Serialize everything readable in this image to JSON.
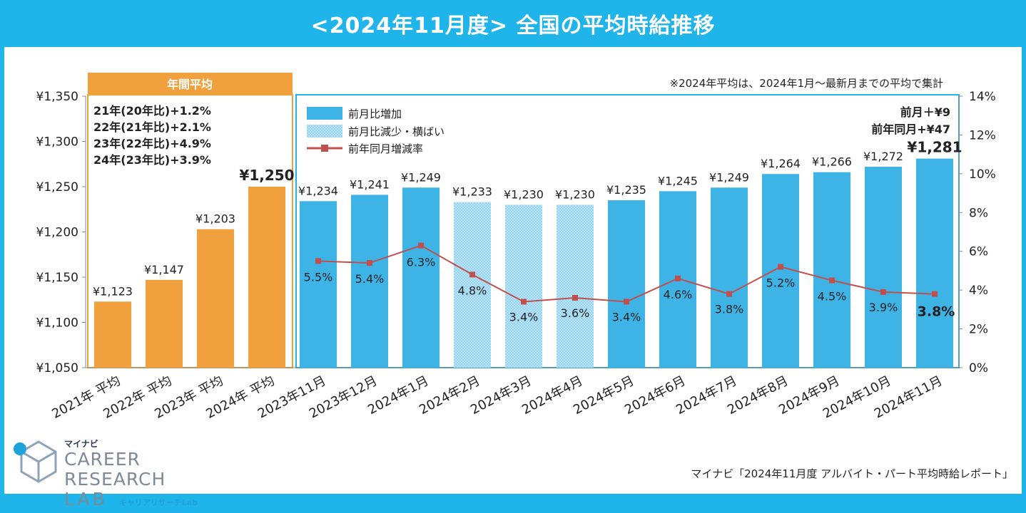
{
  "title": "<2024年11月度>  全国の平均時給推移",
  "note": "※2024年平均は、2024年1月～最新月までの平均で集計",
  "annual_box": {
    "header": "年間平均",
    "lines": [
      "21年(20年比)+1.2%",
      "22年(21年比)+2.1%",
      "23年(22年比)+4.9%",
      "24年(23年比)+3.9%"
    ]
  },
  "latest_summary": {
    "mom": "前月＋¥9",
    "yoy": "前年同月+¥47"
  },
  "source": "マイナビ「2024年11月度 アルバイト・パート平均時給レポート」",
  "logo": {
    "brand": "マイナビ",
    "line1": "CAREER RESEARCH",
    "line2": "LAB",
    "sub": "キャリアリサーチLab"
  },
  "colors": {
    "annual": "#f0a03c",
    "increase": "#3db3e6",
    "decrease": "#a9dcf3",
    "line": "#c0504d",
    "frame": "#1fb5ea"
  },
  "chart_data": {
    "type": "bar",
    "categories": [
      "2021年 平均",
      "2022年 平均",
      "2023年 平均",
      "2024年 平均",
      "2023年11月",
      "2023年12月",
      "2024年1月",
      "2024年2月",
      "2024年3月",
      "2024年4月",
      "2024年5月",
      "2024年6月",
      "2024年7月",
      "2024年8月",
      "2024年9月",
      "2024年10月",
      "2024年11月"
    ],
    "values": [
      1123,
      1147,
      1203,
      1250,
      1234,
      1241,
      1249,
      1233,
      1230,
      1230,
      1235,
      1245,
      1249,
      1264,
      1266,
      1272,
      1281
    ],
    "bar_labels": [
      "¥1,123",
      "¥1,147",
      "¥1,203",
      "¥1,250",
      "¥1,234",
      "¥1,241",
      "¥1,249",
      "¥1,233",
      "¥1,230",
      "¥1,230",
      "¥1,235",
      "¥1,245",
      "¥1,249",
      "¥1,264",
      "¥1,266",
      "¥1,272",
      "¥1,281"
    ],
    "bar_types": [
      "annual",
      "annual",
      "annual",
      "annual",
      "increase",
      "increase",
      "increase",
      "decrease",
      "decrease",
      "decrease",
      "increase",
      "increase",
      "increase",
      "increase",
      "increase",
      "increase",
      "increase"
    ],
    "line_series": {
      "name": "前年同月増減率",
      "values": [
        5.5,
        5.4,
        6.3,
        4.8,
        3.4,
        3.6,
        3.4,
        4.6,
        3.8,
        5.2,
        4.5,
        3.9,
        3.8
      ],
      "labels": [
        "5.5%",
        "5.4%",
        "6.3%",
        "4.8%",
        "3.4%",
        "3.6%",
        "3.4%",
        "4.6%",
        "3.8%",
        "5.2%",
        "4.5%",
        "3.9%",
        "3.8%"
      ]
    },
    "legend": [
      "前月比増加",
      "前月比減少・横ばい",
      "前年同月増減率"
    ],
    "ylim": [
      1050,
      1350
    ],
    "y_ticks": [
      "¥1,050",
      "¥1,100",
      "¥1,150",
      "¥1,200",
      "¥1,250",
      "¥1,300",
      "¥1,350"
    ],
    "y2lim": [
      0,
      14
    ],
    "y2_ticks": [
      "0%",
      "2%",
      "4%",
      "6%",
      "8%",
      "10%",
      "12%",
      "14%"
    ],
    "grid": false
  }
}
